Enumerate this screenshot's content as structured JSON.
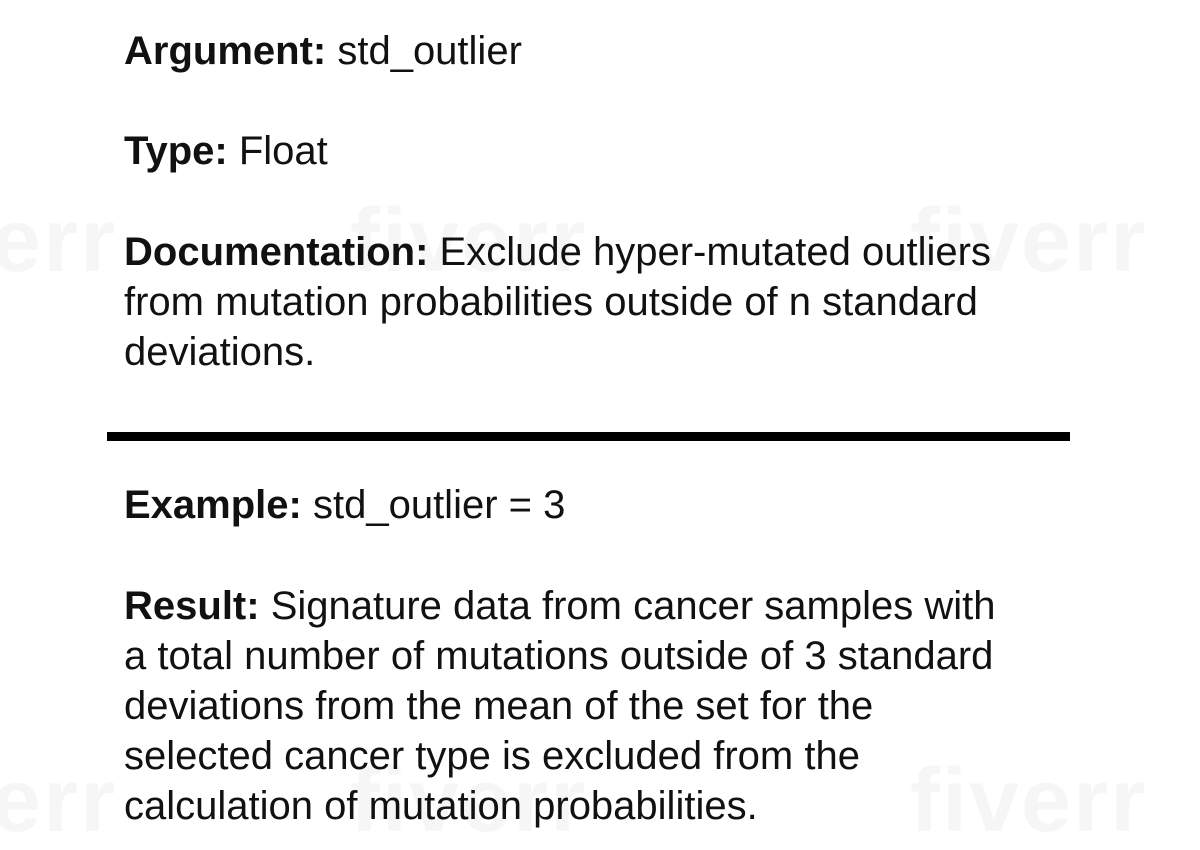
{
  "watermark": {
    "text": "fiverr"
  },
  "argument": {
    "label": "Argument:",
    "value": " std_outlier"
  },
  "type": {
    "label": "Type:",
    "value": " Float"
  },
  "documentation": {
    "label": "Documentation:",
    "value": " Exclude hyper-mutated outliers\nfrom mutation probabilities outside of n standard\ndeviations."
  },
  "example": {
    "label": "Example:",
    "value": " std_outlier = 3"
  },
  "result": {
    "label": "Result:",
    "value": " Signature data from cancer samples with\na total number of mutations outside of 3 standard\ndeviations from the mean of the set for the\nselected cancer type is excluded from the\ncalculation of mutation probabilities."
  }
}
